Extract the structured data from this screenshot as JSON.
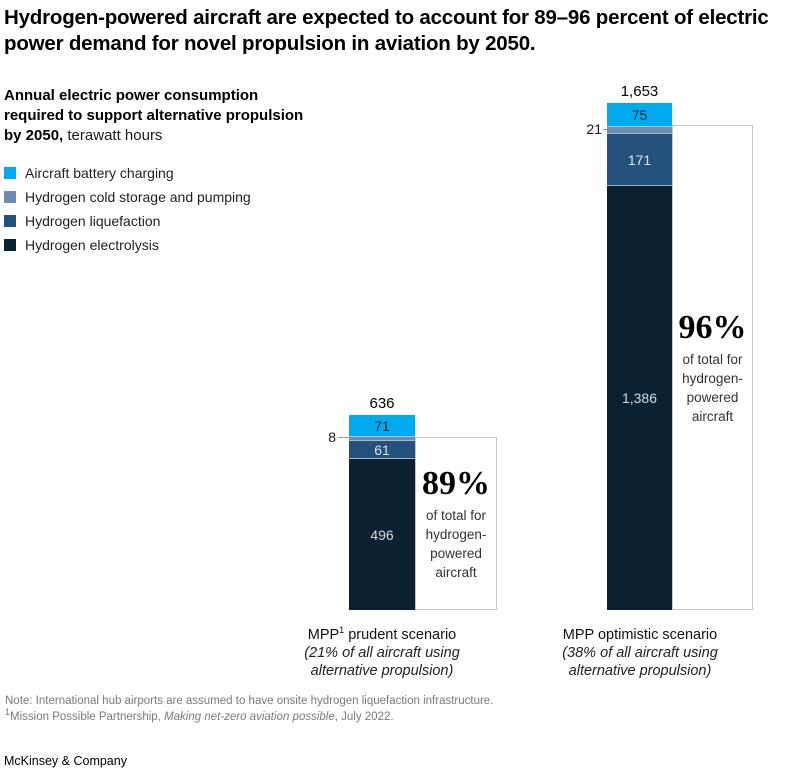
{
  "title": "Hydrogen-powered aircraft are expected to account for 89–96 percent of electric power demand for novel propulsion in aviation by 2050.",
  "subtitle": {
    "bold": "Annual electric power consumption required to support alternative propulsion by 2050,",
    "regular": " terawatt hours"
  },
  "legend": {
    "items": [
      {
        "label": "Aircraft battery charging",
        "color": "#00aaef"
      },
      {
        "label": "Hydrogen cold storage and pumping",
        "color": "#6e8cb0"
      },
      {
        "label": "Hydrogen liquefaction",
        "color": "#24517b"
      },
      {
        "label": "Hydrogen electrolysis",
        "color": "#0b2132"
      }
    ]
  },
  "chart_data": {
    "type": "bar",
    "stacked": true,
    "title": "Annual electric power consumption required to support alternative propulsion by 2050, terawatt hours",
    "categories": [
      "MPP¹ prudent scenario (21% of all aircraft using alternative propulsion)",
      "MPP optimistic scenario (38% of all aircraft using alternative propulsion)"
    ],
    "series": [
      {
        "name": "Aircraft battery charging",
        "color": "#00aaef",
        "values": [
          71,
          75
        ]
      },
      {
        "name": "Hydrogen cold storage and pumping",
        "color": "#6e8cb0",
        "values": [
          8,
          21
        ]
      },
      {
        "name": "Hydrogen liquefaction",
        "color": "#24517b",
        "values": [
          61,
          171
        ]
      },
      {
        "name": "Hydrogen electrolysis",
        "color": "#0b2132",
        "values": [
          496,
          1386
        ]
      }
    ],
    "totals": [
      636,
      1653
    ],
    "annotations": [
      "89% of total for hydrogen-powered aircraft",
      "96% of total for hydrogen-powered aircraft"
    ],
    "legend_position": "top-left",
    "grid": false,
    "ylim": [
      0,
      1653
    ]
  },
  "bars": [
    {
      "total": "636",
      "battery": "71",
      "cold_storage": "8",
      "liquefaction": "61",
      "electrolysis": "496",
      "pct": "89%",
      "pct_caption": "of total for hydrogen-powered aircraft",
      "label_prefix": "MPP",
      "label_sup": "1",
      "label_suffix": " prudent scenario",
      "sub_line1": "(21% of all aircraft using",
      "sub_line2": "alternative propulsion)"
    },
    {
      "total": "1,653",
      "battery": "75",
      "cold_storage": "21",
      "liquefaction": "171",
      "electrolysis": "1,386",
      "pct": "96%",
      "pct_caption": "of total for hydrogen-powered aircraft",
      "label_prefix": "MPP optimistic scenario",
      "label_sup": "",
      "label_suffix": "",
      "sub_line1": "(38% of all aircraft using",
      "sub_line2": "alternative propulsion)"
    }
  ],
  "footnotes": {
    "note": "Note: International hub airports are assumed to have onsite hydrogen liquefaction infrastructure.",
    "source_sup": "1",
    "source_pre": "Mission Possible Partnership, ",
    "source_title": "Making net-zero aviation possible",
    "source_post": ", July 2022."
  },
  "brand": "McKinsey & Company"
}
